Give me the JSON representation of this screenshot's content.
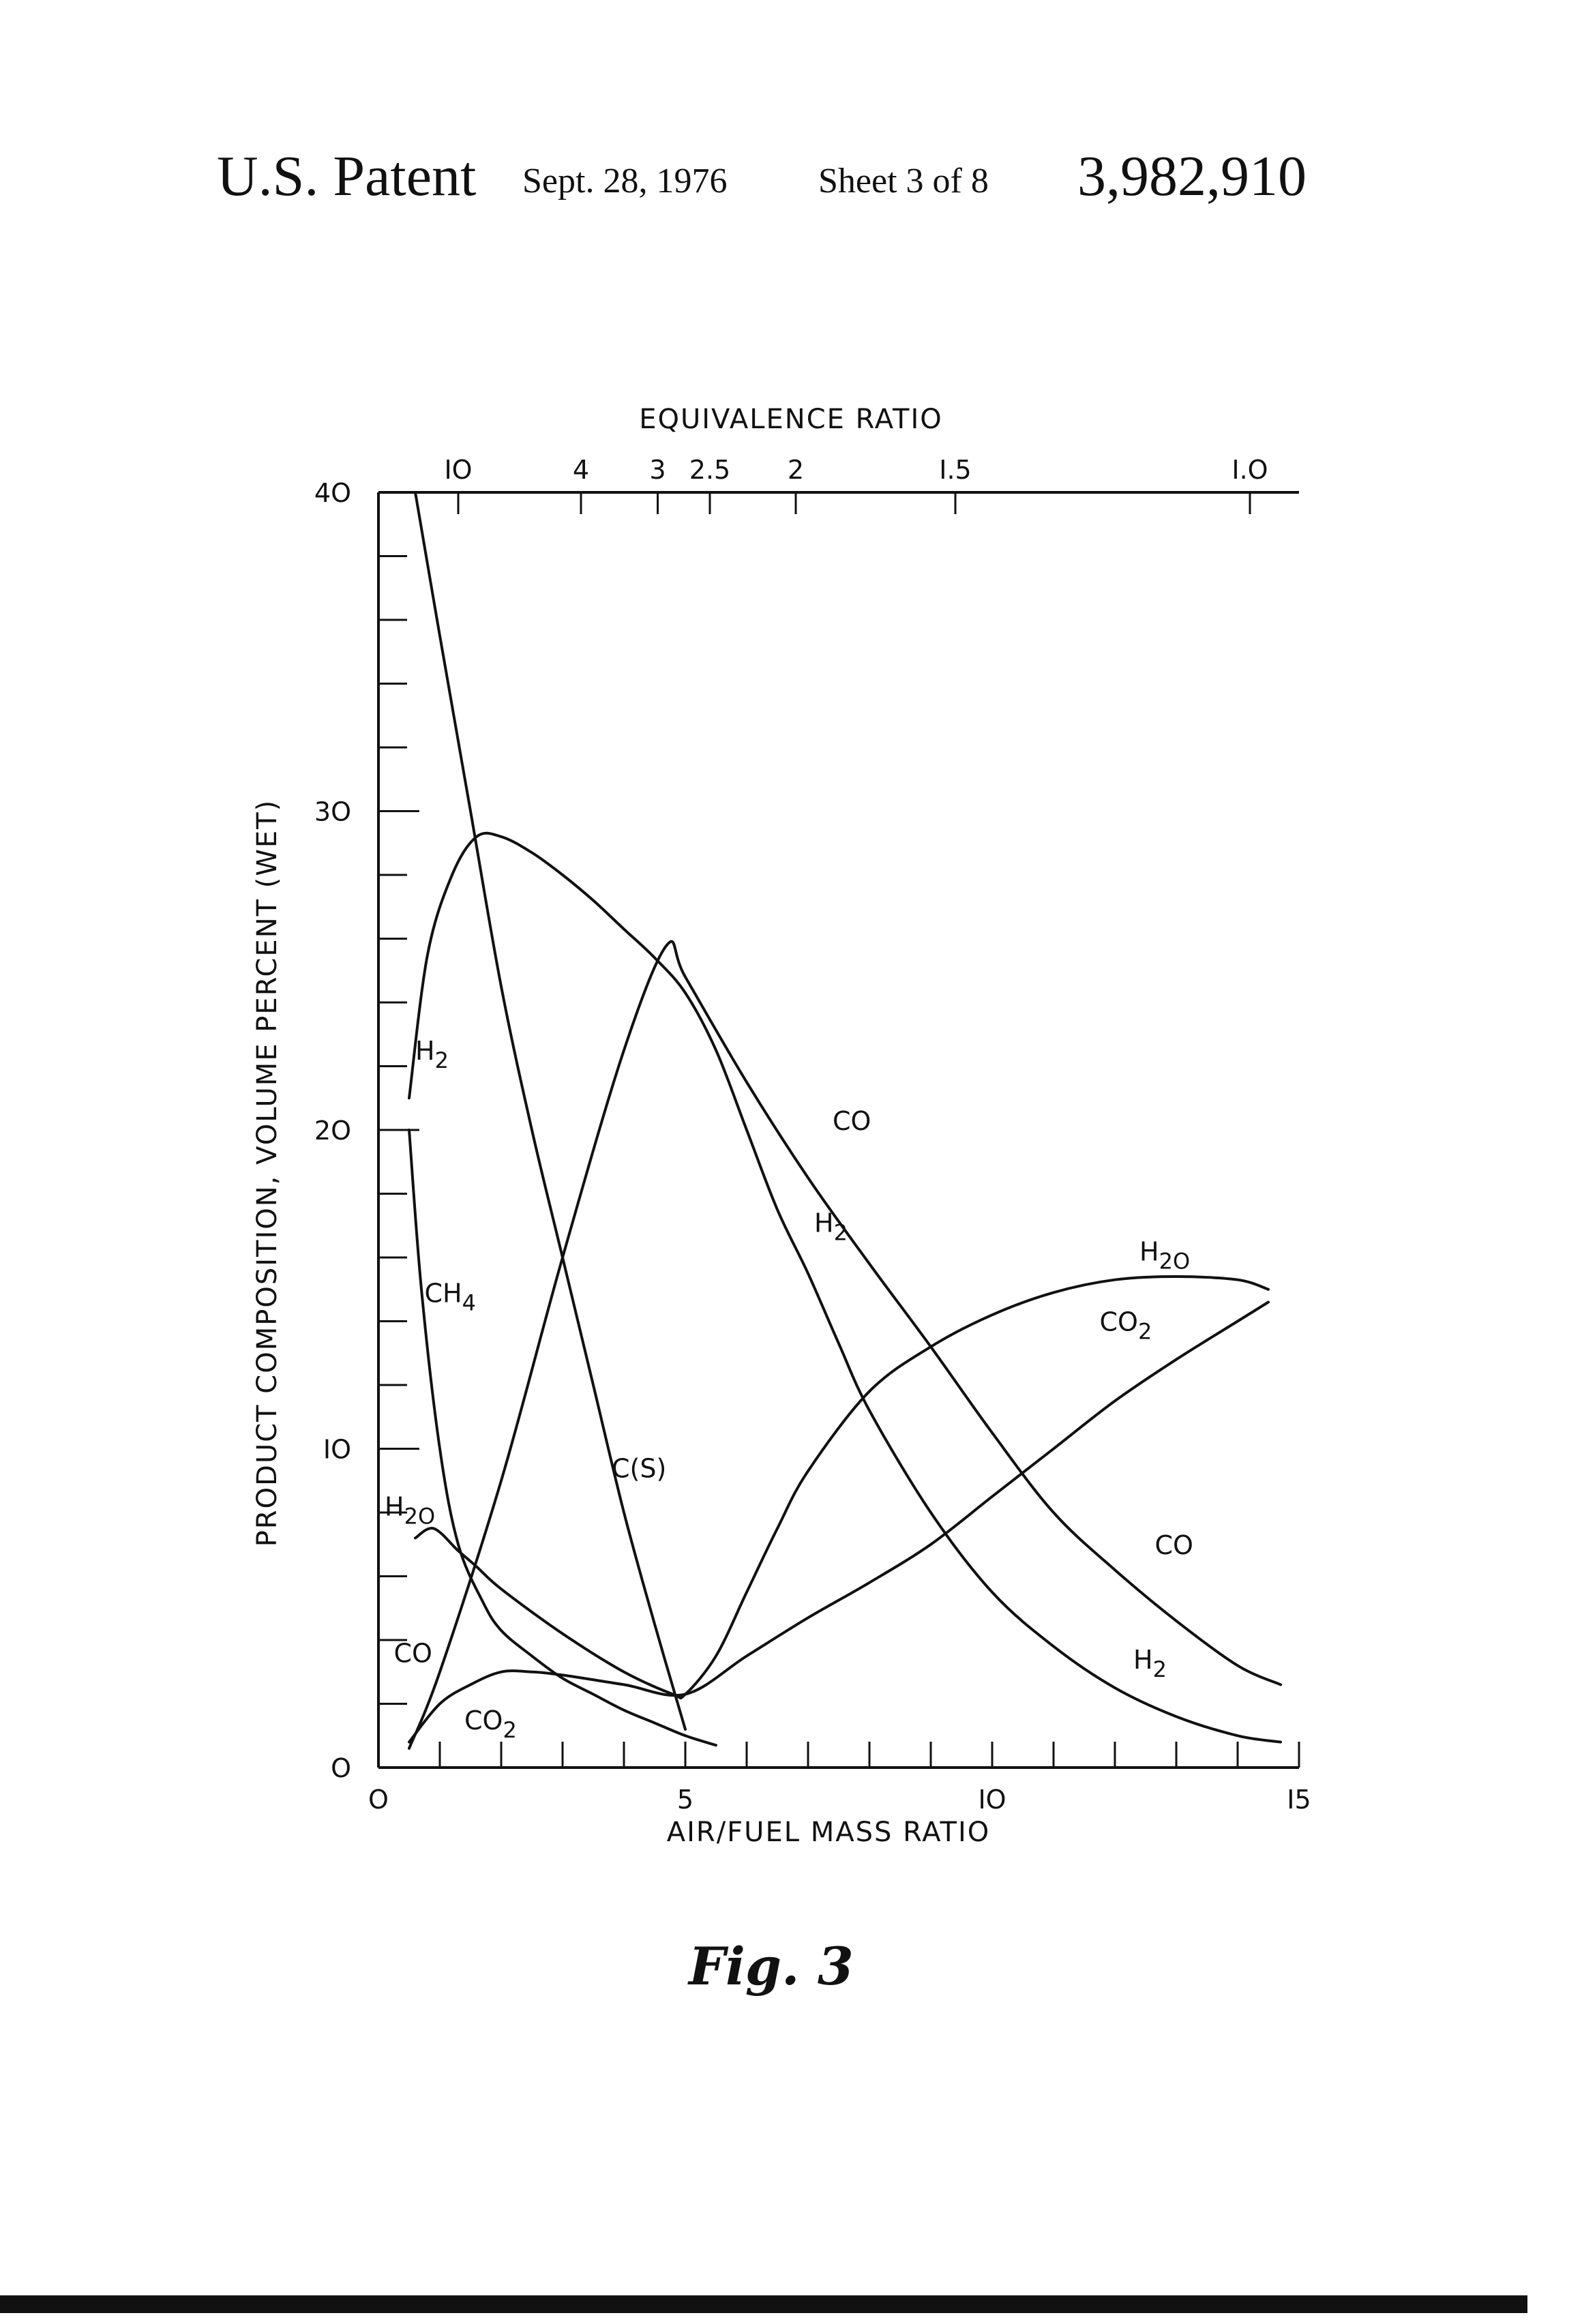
{
  "header": {
    "left": "U.S. Patent",
    "date": "Sept. 28, 1976",
    "sheet": "Sheet 3 of 8",
    "number": "3,982,910"
  },
  "figure_label": "Fig. 3",
  "chart_data": {
    "type": "line",
    "xlabel": "AIR/FUEL MASS RATIO",
    "ylabel": "PRODUCT COMPOSITION, VOLUME PERCENT (WET)",
    "top_axis_label": "EQUIVALENCE RATIO",
    "xlim": [
      0,
      15
    ],
    "ylim": [
      0,
      40
    ],
    "x_ticks": [
      {
        "value": 0,
        "label": "O"
      },
      {
        "value": 5,
        "label": "5"
      },
      {
        "value": 10,
        "label": "IO"
      },
      {
        "value": 15,
        "label": "I5"
      }
    ],
    "y_ticks": [
      {
        "value": 0,
        "label": "O"
      },
      {
        "value": 10,
        "label": "IO"
      },
      {
        "value": 20,
        "label": "2O"
      },
      {
        "value": 30,
        "label": "3O"
      },
      {
        "value": 40,
        "label": "4O"
      }
    ],
    "top_ticks": [
      {
        "at_x": 1.3,
        "label": "IO"
      },
      {
        "at_x": 3.3,
        "label": "4"
      },
      {
        "at_x": 4.55,
        "label": "3"
      },
      {
        "at_x": 5.4,
        "label": "2.5"
      },
      {
        "at_x": 6.8,
        "label": "2"
      },
      {
        "at_x": 9.4,
        "label": "I.5"
      },
      {
        "at_x": 14.2,
        "label": "I.O"
      }
    ],
    "series": [
      {
        "name": "H2",
        "label_main": "H",
        "label_sub": "2",
        "label_at": [
          0.6,
          22.2
        ],
        "x": [
          0.5,
          0.8,
          1.2,
          1.6,
          2.0,
          2.5,
          3.0,
          3.5,
          4.0,
          4.5,
          5.0,
          5.5,
          6.0,
          6.5,
          7.0,
          7.5,
          8.0,
          9.0,
          10.0,
          11.0,
          12.0,
          13.0,
          14.0,
          14.7
        ],
        "y": [
          21.0,
          25.5,
          28.0,
          29.2,
          29.2,
          28.7,
          28.0,
          27.2,
          26.3,
          25.4,
          24.3,
          22.5,
          20.0,
          17.5,
          15.5,
          13.3,
          11.2,
          8.0,
          5.5,
          3.8,
          2.5,
          1.6,
          1.0,
          0.8
        ]
      },
      {
        "name": "CO",
        "label_main": "CO",
        "label_sub": "",
        "label_at": [
          0.25,
          3.3
        ],
        "x": [
          0.5,
          1.0,
          2.0,
          3.0,
          4.0,
          4.7,
          5.0,
          6.0,
          7.0,
          8.0,
          9.0,
          10.0,
          11.0,
          12.0,
          13.0,
          14.0,
          14.7
        ],
        "y": [
          0.6,
          3.0,
          9.0,
          16.0,
          22.5,
          25.8,
          24.8,
          21.5,
          18.5,
          15.8,
          13.2,
          10.5,
          8.0,
          6.2,
          4.6,
          3.2,
          2.6
        ]
      },
      {
        "name": "C(s)",
        "label_main": "C(S)",
        "label_sub": "",
        "label_at": [
          3.8,
          9.1
        ],
        "x": [
          0.6,
          1.0,
          1.5,
          2.0,
          2.5,
          3.0,
          3.5,
          4.0,
          4.5,
          5.0
        ],
        "y": [
          40.0,
          35.5,
          30.0,
          24.5,
          20.0,
          16.0,
          12.0,
          8.0,
          4.5,
          1.2
        ]
      },
      {
        "name": "CH4",
        "label_main": "CH",
        "label_sub": "4",
        "label_at": [
          0.75,
          14.6
        ],
        "x": [
          0.5,
          0.7,
          1.0,
          1.3,
          1.7,
          2.0,
          2.5,
          3.0,
          3.5,
          4.0,
          4.5,
          5.0,
          5.5
        ],
        "y": [
          20.0,
          15.0,
          10.0,
          7.0,
          5.2,
          4.3,
          3.5,
          2.8,
          2.3,
          1.8,
          1.4,
          1.0,
          0.7
        ]
      },
      {
        "name": "H2O",
        "label_main": "H",
        "label_sub": "2O",
        "label_at": [
          0.1,
          7.9
        ],
        "x": [
          0.6,
          0.9,
          1.3,
          1.6,
          2.0,
          3.0,
          4.0,
          4.8,
          5.0,
          5.5,
          6.0,
          6.5,
          7.0,
          8.0,
          9.0,
          10.0,
          11.0,
          12.0,
          13.0,
          14.0,
          14.5
        ],
        "y": [
          7.2,
          7.5,
          6.8,
          6.3,
          5.6,
          4.2,
          3.0,
          2.3,
          2.3,
          3.5,
          5.5,
          7.5,
          9.3,
          11.8,
          13.2,
          14.2,
          14.9,
          15.3,
          15.4,
          15.3,
          15.0
        ]
      },
      {
        "name": "CO2",
        "label_main": "CO",
        "label_sub": "2",
        "label_at": [
          1.4,
          1.2
        ],
        "x": [
          0.5,
          1.0,
          1.5,
          2.0,
          2.5,
          3.0,
          4.0,
          5.0,
          6.0,
          7.0,
          8.0,
          9.0,
          10.0,
          11.0,
          12.0,
          13.0,
          14.0,
          14.5
        ],
        "y": [
          0.8,
          2.0,
          2.6,
          3.0,
          3.0,
          2.9,
          2.6,
          2.3,
          3.5,
          4.7,
          5.8,
          7.0,
          8.5,
          10.0,
          11.5,
          12.8,
          14.0,
          14.6
        ]
      }
    ],
    "extra_labels": [
      {
        "series": "H2",
        "main": "H",
        "sub": "2",
        "at": [
          7.1,
          16.8
        ]
      },
      {
        "series": "CO",
        "main": "CO",
        "sub": "",
        "at": [
          7.4,
          20.0
        ]
      },
      {
        "series": "H2O",
        "main": "H",
        "sub": "2O",
        "at": [
          12.4,
          15.9
        ]
      },
      {
        "series": "CO2",
        "main": "CO",
        "sub": "2",
        "at": [
          11.75,
          13.7
        ]
      },
      {
        "series": "CO",
        "main": "CO",
        "sub": "",
        "at": [
          12.65,
          6.7
        ]
      },
      {
        "series": "H2",
        "main": "H",
        "sub": "2",
        "at": [
          12.3,
          3.1
        ]
      }
    ]
  }
}
